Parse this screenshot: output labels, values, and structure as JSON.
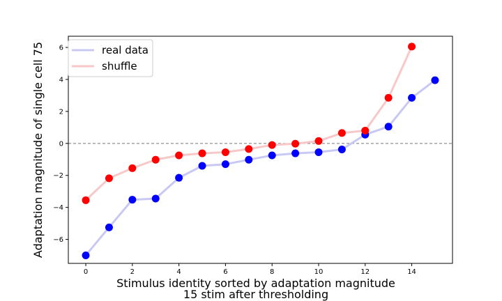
{
  "chart_data": {
    "type": "line",
    "xlabel": "Stimulus identity sorted by adaptation magnitude",
    "xlabel2": "15 stim after thresholding",
    "ylabel": "Adaptation magnitude of single cell 75",
    "xlim": [
      -0.75,
      15.75
    ],
    "ylim": [
      -7.5,
      6.7
    ],
    "xticks": [
      0,
      2,
      4,
      6,
      8,
      10,
      12,
      14
    ],
    "yticks": [
      -6,
      -4,
      -2,
      0,
      2,
      4,
      6
    ],
    "xtick_labels": [
      "0",
      "2",
      "4",
      "6",
      "8",
      "10",
      "12",
      "14"
    ],
    "ytick_labels": [
      "−6",
      "−4",
      "−2",
      "0",
      "2",
      "4",
      "6"
    ],
    "zero_line": 0,
    "legend_position": "upper-left",
    "series": [
      {
        "name": "real data",
        "line_color": "#c8c8f5",
        "marker_color": "#0000ff",
        "x": [
          0,
          1,
          2,
          3,
          4,
          5,
          6,
          7,
          8,
          9,
          10,
          11,
          12,
          13,
          14,
          15
        ],
        "y": [
          -7.0,
          -5.25,
          -3.52,
          -3.45,
          -2.15,
          -1.4,
          -1.3,
          -1.02,
          -0.75,
          -0.62,
          -0.55,
          -0.38,
          0.55,
          1.05,
          2.85,
          3.95
        ]
      },
      {
        "name": "shuffle",
        "line_color": "#f8c8c8",
        "marker_color": "#ff0000",
        "x": [
          0,
          1,
          2,
          3,
          4,
          5,
          6,
          7,
          8,
          9,
          10,
          11,
          12,
          13,
          14
        ],
        "y": [
          -3.55,
          -2.18,
          -1.55,
          -1.02,
          -0.75,
          -0.62,
          -0.55,
          -0.35,
          -0.1,
          -0.02,
          0.15,
          0.65,
          0.8,
          2.85,
          6.05
        ]
      }
    ]
  }
}
